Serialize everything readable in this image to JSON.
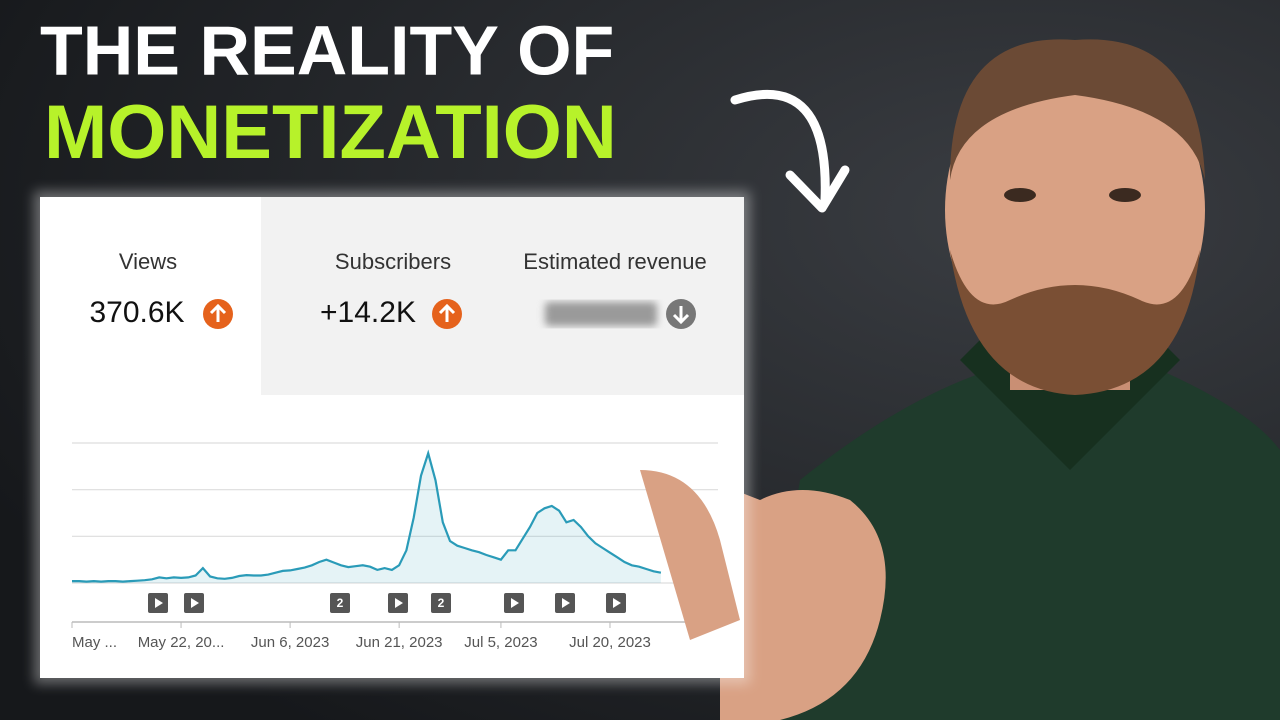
{
  "headline": {
    "line1": "THE REALITY OF",
    "line2": "MONETIZATION"
  },
  "tabs": [
    {
      "label": "Views",
      "value": "370.6K"
    },
    {
      "label": "Subscribers",
      "value": "+14.2K"
    },
    {
      "label": "Estimated revenue"
    }
  ],
  "chart_data": {
    "type": "line",
    "color": "#2a9bb8",
    "categories": [
      "May ...",
      null,
      null,
      null,
      null,
      null,
      null,
      null,
      null,
      null,
      null,
      null,
      null,
      null,
      null,
      "May 22, 20...",
      null,
      null,
      null,
      null,
      null,
      null,
      null,
      null,
      null,
      null,
      null,
      null,
      null,
      null,
      "Jun 6, 2023",
      null,
      null,
      null,
      null,
      null,
      null,
      null,
      null,
      null,
      null,
      null,
      null,
      null,
      null,
      "Jun 21, 2023",
      null,
      null,
      null,
      null,
      null,
      null,
      null,
      null,
      null,
      null,
      null,
      null,
      null,
      "Jul 5, 2023",
      null,
      null,
      null,
      null,
      null,
      null,
      null,
      null,
      null,
      null,
      null,
      null,
      null,
      null,
      "Jul 20, 2023",
      null,
      null,
      null,
      null,
      null,
      null,
      null
    ],
    "values": [
      0.04,
      0.04,
      0.03,
      0.04,
      0.03,
      0.04,
      0.04,
      0.03,
      0.04,
      0.05,
      0.06,
      0.08,
      0.12,
      0.1,
      0.12,
      0.11,
      0.12,
      0.16,
      0.32,
      0.14,
      0.1,
      0.09,
      0.11,
      0.15,
      0.17,
      0.16,
      0.16,
      0.18,
      0.22,
      0.26,
      0.27,
      0.3,
      0.33,
      0.38,
      0.45,
      0.5,
      0.44,
      0.38,
      0.34,
      0.36,
      0.38,
      0.35,
      0.28,
      0.32,
      0.28,
      0.38,
      0.7,
      1.4,
      2.3,
      2.78,
      2.2,
      1.3,
      0.9,
      0.8,
      0.75,
      0.7,
      0.66,
      0.6,
      0.55,
      0.5,
      0.7,
      0.7,
      0.95,
      1.2,
      1.5,
      1.6,
      1.65,
      1.55,
      1.3,
      1.35,
      1.2,
      1.0,
      0.85,
      0.75,
      0.65,
      0.55,
      0.45,
      0.38,
      0.35,
      0.3,
      0.25,
      0.22
    ],
    "ylim": [
      0,
      3
    ],
    "yticks": [
      0,
      1,
      2,
      3
    ],
    "grid": true,
    "markers": [
      "2",
      "2"
    ]
  }
}
